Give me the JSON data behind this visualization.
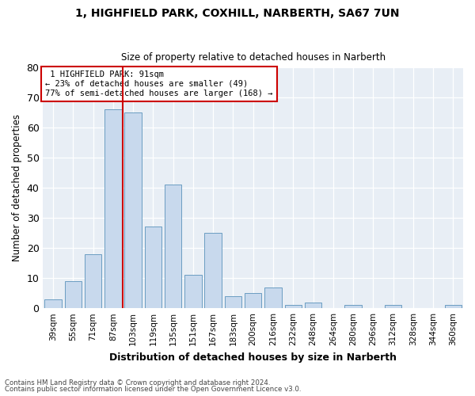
{
  "title1": "1, HIGHFIELD PARK, COXHILL, NARBERTH, SA67 7UN",
  "title2": "Size of property relative to detached houses in Narberth",
  "xlabel": "Distribution of detached houses by size in Narberth",
  "ylabel": "Number of detached properties",
  "bar_color": "#c8d9ed",
  "bar_edge_color": "#6b9dc2",
  "background_color": "#e8eef5",
  "categories": [
    "39sqm",
    "55sqm",
    "71sqm",
    "87sqm",
    "103sqm",
    "119sqm",
    "135sqm",
    "151sqm",
    "167sqm",
    "183sqm",
    "200sqm",
    "216sqm",
    "232sqm",
    "248sqm",
    "264sqm",
    "280sqm",
    "296sqm",
    "312sqm",
    "328sqm",
    "344sqm",
    "360sqm"
  ],
  "values": [
    3,
    9,
    18,
    66,
    65,
    27,
    41,
    11,
    25,
    4,
    5,
    7,
    1,
    2,
    0,
    1,
    0,
    1,
    0,
    0,
    1
  ],
  "ylim": [
    0,
    80
  ],
  "yticks": [
    0,
    10,
    20,
    30,
    40,
    50,
    60,
    70,
    80
  ],
  "property_label": "1 HIGHFIELD PARK: 91sqm",
  "pct_smaller": "23% of detached houses are smaller (49)",
  "pct_larger": "77% of semi-detached houses are larger (168)",
  "vline_x_index": 3.5,
  "annotation_box_color": "#ffffff",
  "annotation_box_edge": "#cc0000",
  "vline_color": "#cc0000",
  "footer1": "Contains HM Land Registry data © Crown copyright and database right 2024.",
  "footer2": "Contains public sector information licensed under the Open Government Licence v3.0."
}
